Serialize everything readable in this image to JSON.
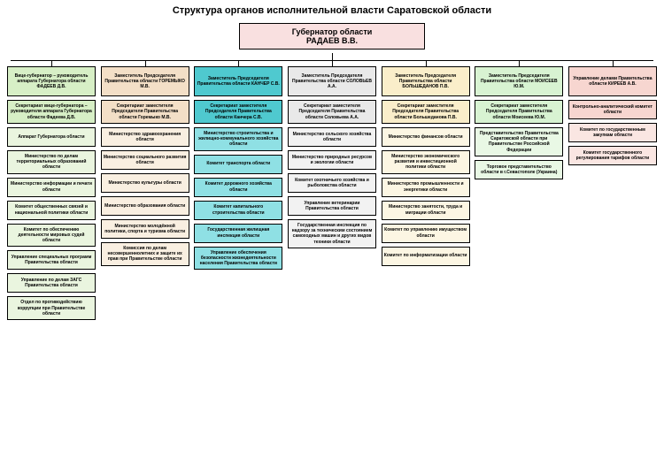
{
  "title": "Структура органов исполнительной власти Саратовской области",
  "governor": {
    "title": "Губернатор области",
    "name": "РАДАЕВ В.В.",
    "bg": "#f9e0e0"
  },
  "columns": [
    {
      "head_bg": "#d7efc6",
      "box_bg": "#eaf5df",
      "boxes": [
        "Вице-губернатор – руководитель аппарата Губернатора области ФАДЕЕВ Д.В.",
        "Секретариат вице-губернатора – руководителя аппарата Губернатора области Фадеева Д.В.",
        "Аппарат Губернатора области",
        "Министерство по делам территориальных образований области",
        "Министерство информации и печати области",
        "Комитет общественных связей и национальной политики области",
        "Комитет по обеспечению деятельности мировых судей области",
        "Управление специальных программ Правительства области",
        "Управление по делам ЗАГС Правительства области",
        "Отдел по противодействию коррупции при Правительстве области"
      ]
    },
    {
      "head_bg": "#f3dfc7",
      "box_bg": "#f9efe1",
      "boxes": [
        "Заместитель Председателя Правительства области ГОРЕМЫКО М.В.",
        "Секретариат заместителя Председателя Правительства области Горемыко М.В.",
        "Министерство здравоохранения области",
        "Министерство социального развития области",
        "Министерство культуры области",
        "Министерство образования области",
        "Министерство молодёжной политики, спорта и туризма области",
        "Комиссия по делам несовершеннолетних и защите их прав при Правительстве области"
      ]
    },
    {
      "head_bg": "#4fc9cf",
      "box_bg": "#8fe0e4",
      "boxes": [
        "Заместитель Председателя Правительства области КАНЧЕР С.В.",
        "Секретариат заместителя Председателя Правительства области Канчера С.В.",
        "Министерство строительства и жилищно-коммунального хозяйства области",
        "Комитет транспорта области",
        "Комитет дорожного хозяйства области",
        "Комитет капитального строительства области",
        "Государственная жилищная инспекция области",
        "Управление обеспечения безопасности жизнедеятельности населения Правительства области"
      ]
    },
    {
      "head_bg": "#e9e9e9",
      "box_bg": "#f2f2f2",
      "boxes": [
        "Заместитель Председателя Правительства области СОЛОВЬЕВ А.А.",
        "Секретариат заместителя Председателя Правительства области Соловьева А.А.",
        "Министерство сельского хозяйства области",
        "Министерство природных ресурсов и экологии области",
        "Комитет охотничьего хозяйства и рыболовства области",
        "Управление ветеринарии Правительства области",
        "Государственная инспекция по надзору за техническим состоянием самоходных машин и других видов техники области"
      ]
    },
    {
      "head_bg": "#faeeca",
      "box_bg": "#fcf6e3",
      "boxes": [
        "Заместитель Председателя Правительства области БОЛЬШЕДАНОВ П.В.",
        "Секретариат заместителя Председателя Правительства области Большеданова П.В.",
        "Министерство финансов области",
        "Министерство экономического развития и инвестиционной политики области",
        "Министерство промышленности и энергетики области",
        "Министерство занятости, труда и миграции области",
        "Комитет по управлению имуществом области",
        "Комитет по информатизации области"
      ]
    },
    {
      "head_bg": "#d8f3d2",
      "box_bg": "#e9f8e5",
      "boxes": [
        "Заместитель Председателя Правительства области МОИСЕЕВ Ю.М.",
        "Секретариат заместителя Председателя Правительства области Моисеева Ю.М.",
        "Представительство Правительства Саратовской области при Правительстве Российской Федерации",
        "Торговое представительство области в г.Севастополе (Украина)"
      ]
    },
    {
      "head_bg": "#f7d6d0",
      "box_bg": "#fae6e2",
      "boxes": [
        "Управление делами Правительства области КИРЕЕВ А.В.",
        "Контрольно-аналитический комитет области",
        "Комитет по государственным закупкам области",
        "Комитет государственного регулирования тарифов области"
      ]
    }
  ]
}
